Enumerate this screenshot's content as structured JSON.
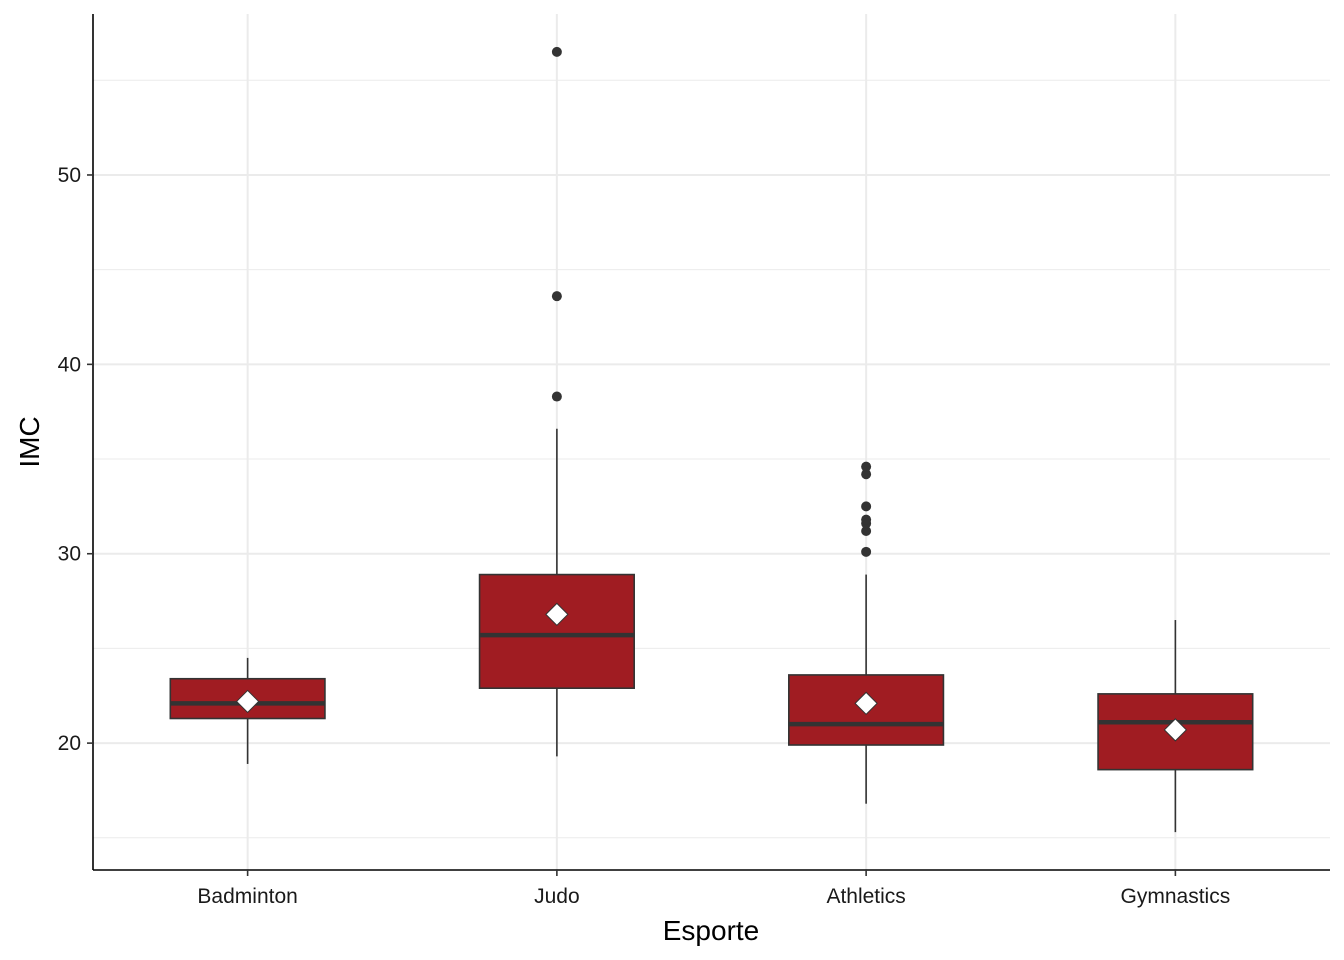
{
  "chart_data": {
    "type": "boxplot",
    "xlabel": "Esporte",
    "ylabel": "IMC",
    "ylim": [
      13.3,
      58.5
    ],
    "yticks": [
      20,
      30,
      40,
      50
    ],
    "minor_gridlines": [
      15,
      25,
      35,
      45,
      55
    ],
    "categories": [
      "Badminton",
      "Judo",
      "Athletics",
      "Gymnastics"
    ],
    "boxes": [
      {
        "category": "Badminton",
        "whisker_low": 18.9,
        "q1": 21.3,
        "median": 22.1,
        "q3": 23.4,
        "whisker_high": 24.5,
        "mean": 22.2,
        "outliers": []
      },
      {
        "category": "Judo",
        "whisker_low": 19.3,
        "q1": 22.9,
        "median": 25.7,
        "q3": 28.9,
        "whisker_high": 36.6,
        "mean": 26.8,
        "outliers": [
          38.3,
          43.6,
          56.5
        ]
      },
      {
        "category": "Athletics",
        "whisker_low": 16.8,
        "q1": 19.9,
        "median": 21.0,
        "q3": 23.6,
        "whisker_high": 28.9,
        "mean": 22.1,
        "outliers": [
          30.1,
          31.2,
          31.6,
          31.8,
          32.5,
          34.2,
          34.6
        ]
      },
      {
        "category": "Gymnastics",
        "whisker_low": 15.3,
        "q1": 18.6,
        "median": 21.1,
        "q3": 22.6,
        "whisker_high": 26.5,
        "mean": 20.7,
        "outliers": []
      }
    ],
    "colors": {
      "box_fill": "#a01c22",
      "box_outline": "#333333",
      "median_line": "#333333",
      "mean_marker": "#ffffff",
      "outlier": "#333333",
      "gridline": "#ebebeb",
      "axis": "#000000"
    },
    "grid": true,
    "legend": "none"
  }
}
